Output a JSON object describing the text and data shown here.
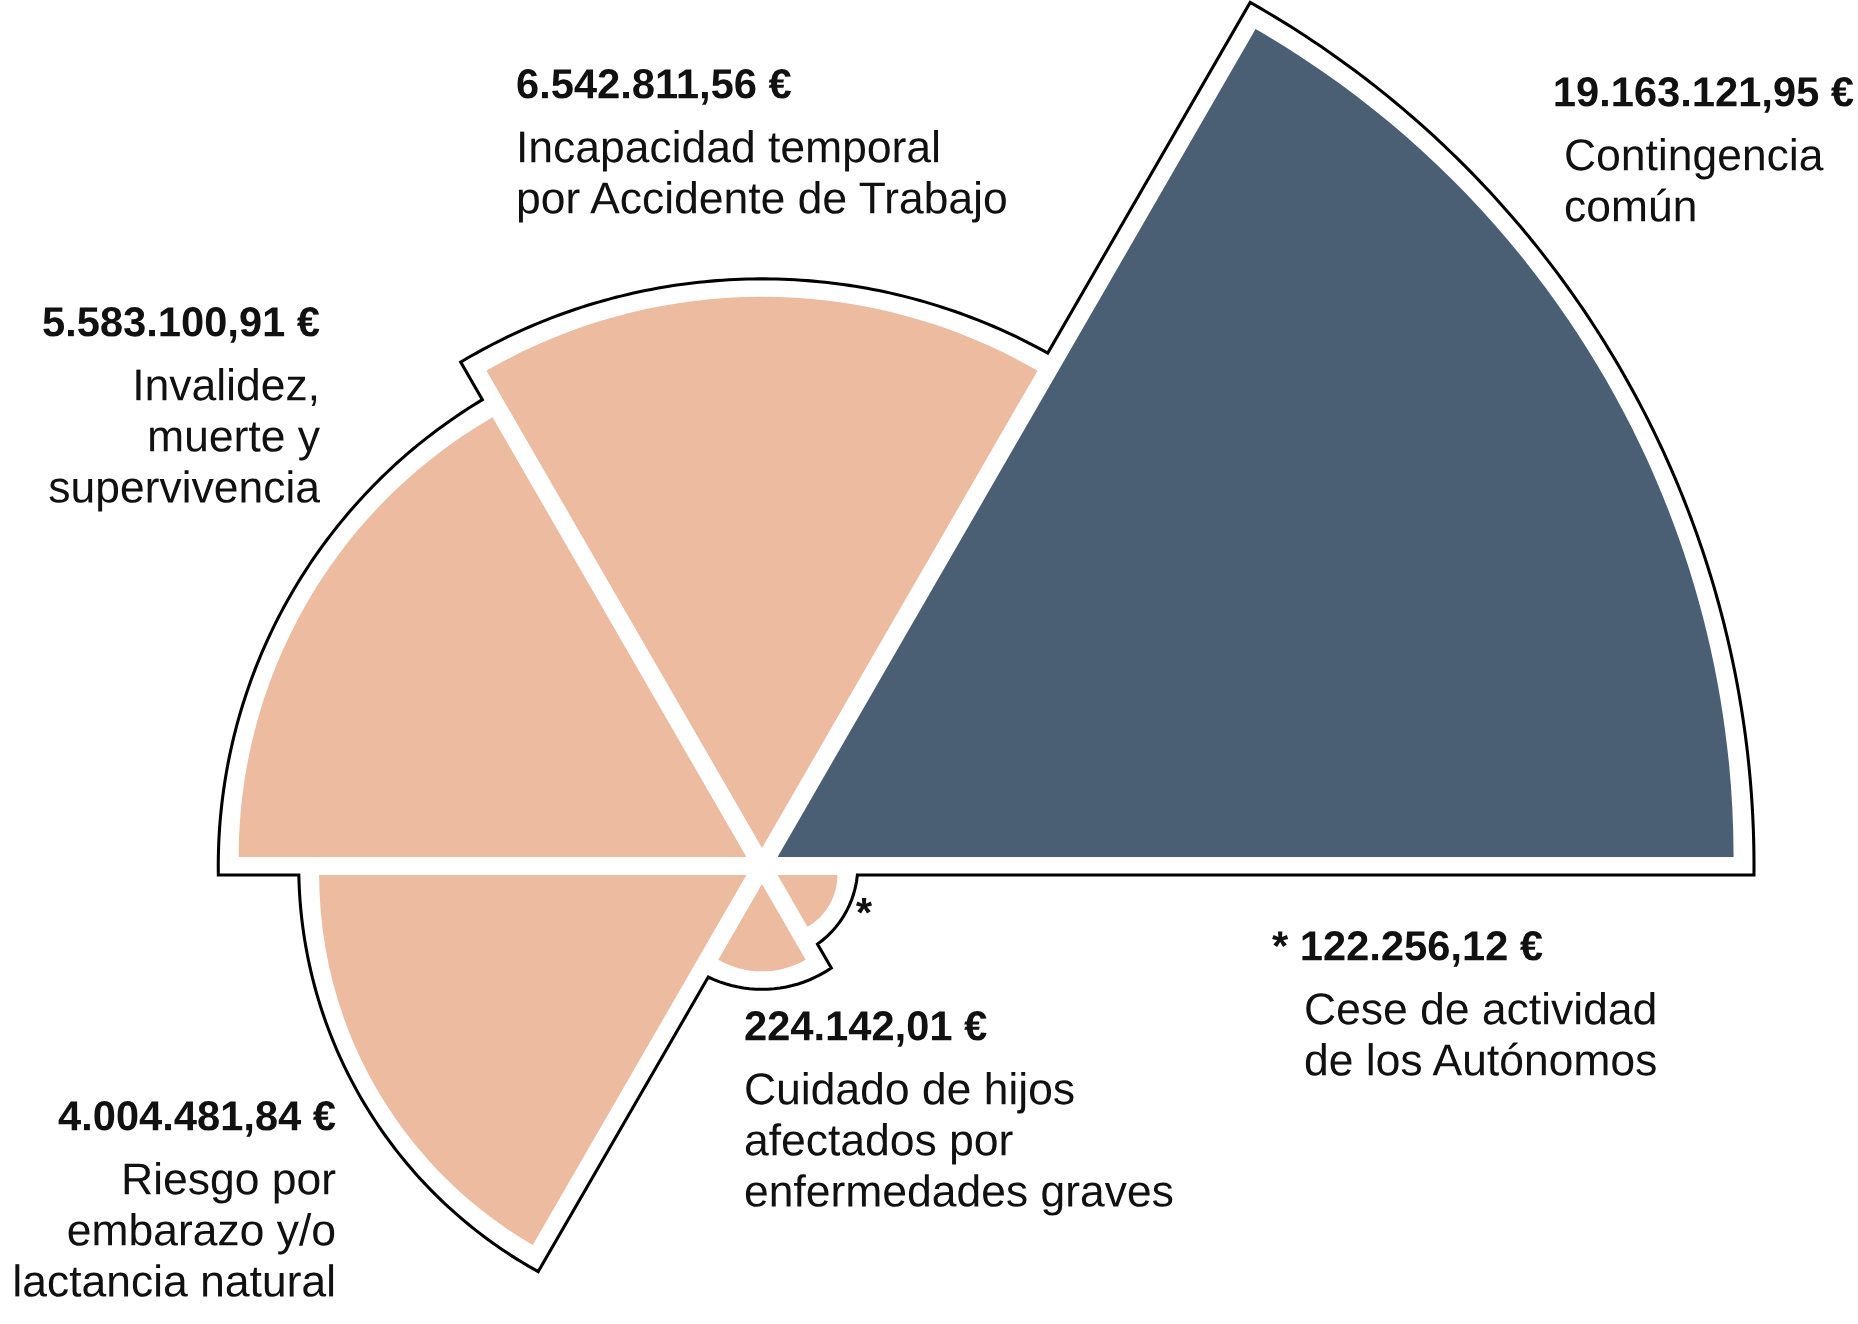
{
  "chart_data": {
    "type": "other",
    "categories": [
      "Contingencia\ncomún",
      "Incapacidad temporal\npor Accidente de Trabajo",
      "Invalidez,\nmuerte y\nsupervivencia",
      "Riesgo por\nembarazo y/o\nlactancia natural",
      "Cuidado de hijos\nafectados por\nenfermedades graves",
      "Cese de actividad\nde los Autónomos"
    ],
    "values": [
      19163121.95,
      6542811.56,
      5583100.91,
      4004481.84,
      224142.01,
      122256.12
    ],
    "value_labels": [
      "19.163.121,95 €",
      "6.542.811,56 €",
      "5.583.100,91 €",
      "4.004.481,84 €",
      "224.142,01 €",
      "* 122.256,12 €"
    ],
    "colors": [
      "#4a5f74",
      "#ecbba0",
      "#ecbba0",
      "#ecbba0",
      "#ecbba0",
      "#ecbba0"
    ],
    "annotations": [
      "*"
    ]
  }
}
